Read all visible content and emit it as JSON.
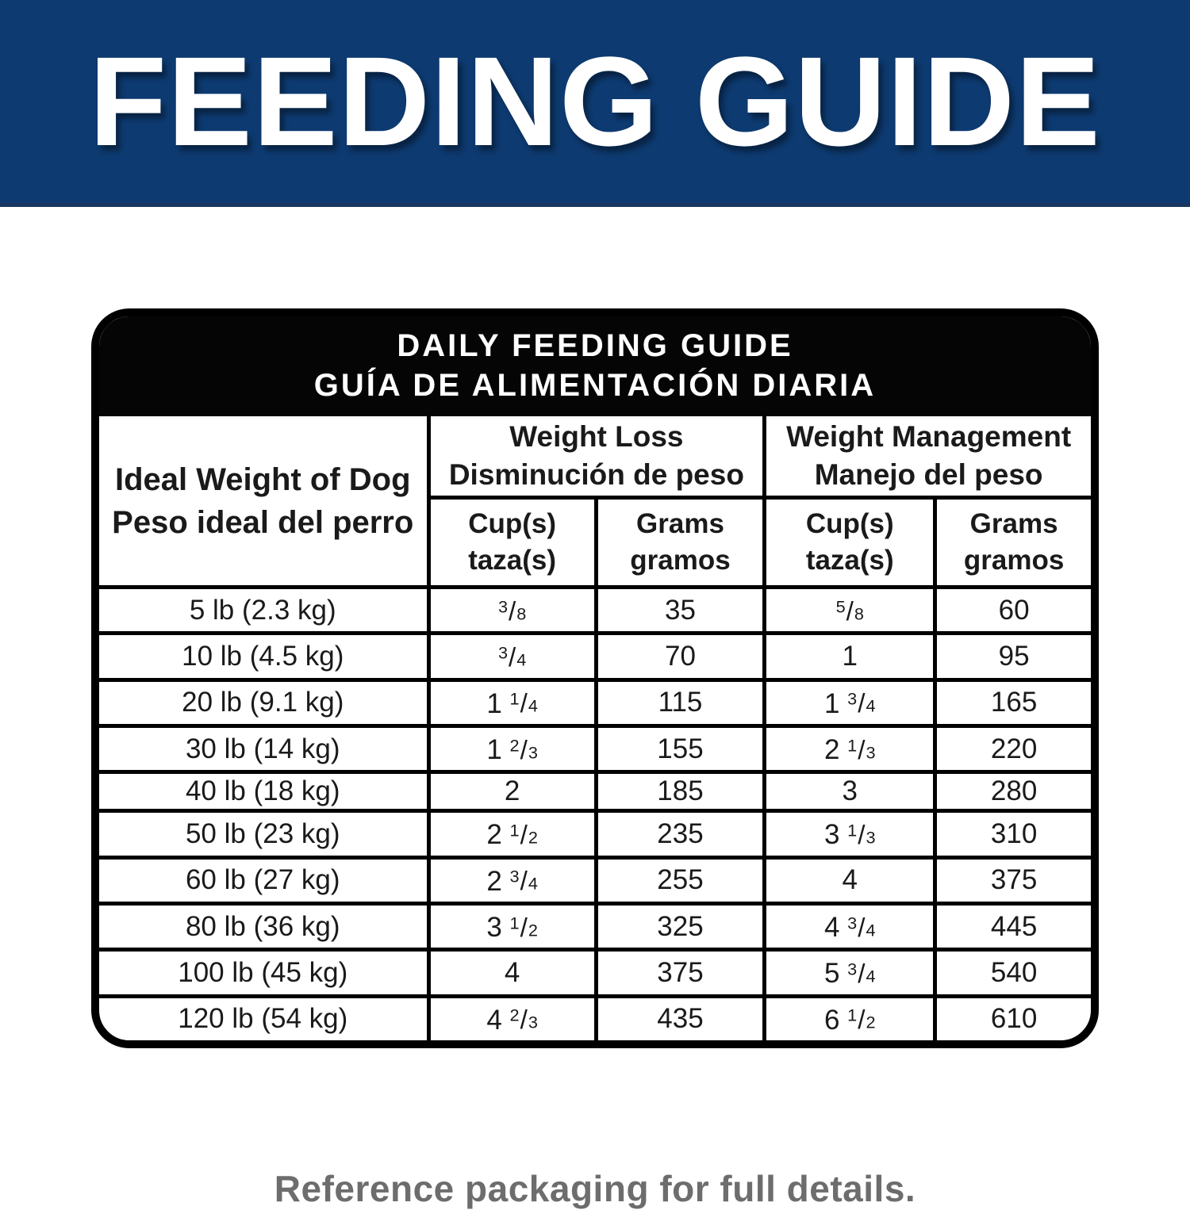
{
  "banner": {
    "title": "FEEDING GUIDE",
    "bg_color": "#0d3a70",
    "text_color": "#ffffff"
  },
  "card": {
    "title_en": "DAILY FEEDING GUIDE",
    "title_es": "GUÍA DE ALIMENTACIÓN DIARIA",
    "header_bg_color": "#050505",
    "border_color": "#000000"
  },
  "table": {
    "weight_header_en": "Ideal Weight of Dog",
    "weight_header_es": "Peso ideal del perro",
    "groups": [
      {
        "label_en": "Weight Loss",
        "label_es": "Disminución de peso"
      },
      {
        "label_en": "Weight Management",
        "label_es": "Manejo del peso"
      }
    ],
    "sub_headers": {
      "cups_en": "Cup(s)",
      "cups_es": "taza(s)",
      "grams_en": "Grams",
      "grams_es": "gramos"
    },
    "rows": [
      {
        "weight": "5 lb (2.3 kg)",
        "loss_cups": "3/8",
        "loss_grams": "35",
        "mgmt_cups": "5/8",
        "mgmt_grams": "60"
      },
      {
        "weight": "10 lb (4.5 kg)",
        "loss_cups": "3/4",
        "loss_grams": "70",
        "mgmt_cups": "1",
        "mgmt_grams": "95"
      },
      {
        "weight": "20 lb (9.1 kg)",
        "loss_cups": "1 1/4",
        "loss_grams": "115",
        "mgmt_cups": "1 3/4",
        "mgmt_grams": "165"
      },
      {
        "weight": "30 lb (14 kg)",
        "loss_cups": "1 2/3",
        "loss_grams": "155",
        "mgmt_cups": "2 1/3",
        "mgmt_grams": "220"
      },
      {
        "weight": "40 lb (18 kg)",
        "loss_cups": "2",
        "loss_grams": "185",
        "mgmt_cups": "3",
        "mgmt_grams": "280"
      },
      {
        "weight": "50 lb (23 kg)",
        "loss_cups": "2 1/2",
        "loss_grams": "235",
        "mgmt_cups": "3 1/3",
        "mgmt_grams": "310"
      },
      {
        "weight": "60 lb (27 kg)",
        "loss_cups": "2 3/4",
        "loss_grams": "255",
        "mgmt_cups": "4",
        "mgmt_grams": "375"
      },
      {
        "weight": "80 lb (36 kg)",
        "loss_cups": "3 1/2",
        "loss_grams": "325",
        "mgmt_cups": "4 3/4",
        "mgmt_grams": "445"
      },
      {
        "weight": "100 lb (45 kg)",
        "loss_cups": "4",
        "loss_grams": "375",
        "mgmt_cups": "5 3/4",
        "mgmt_grams": "540"
      },
      {
        "weight": "120 lb (54 kg)",
        "loss_cups": "4 2/3",
        "loss_grams": "435",
        "mgmt_cups": "6 1/2",
        "mgmt_grams": "610"
      }
    ]
  },
  "footer": {
    "note": "Reference packaging for full details.",
    "text_color": "#6d6d6d"
  }
}
